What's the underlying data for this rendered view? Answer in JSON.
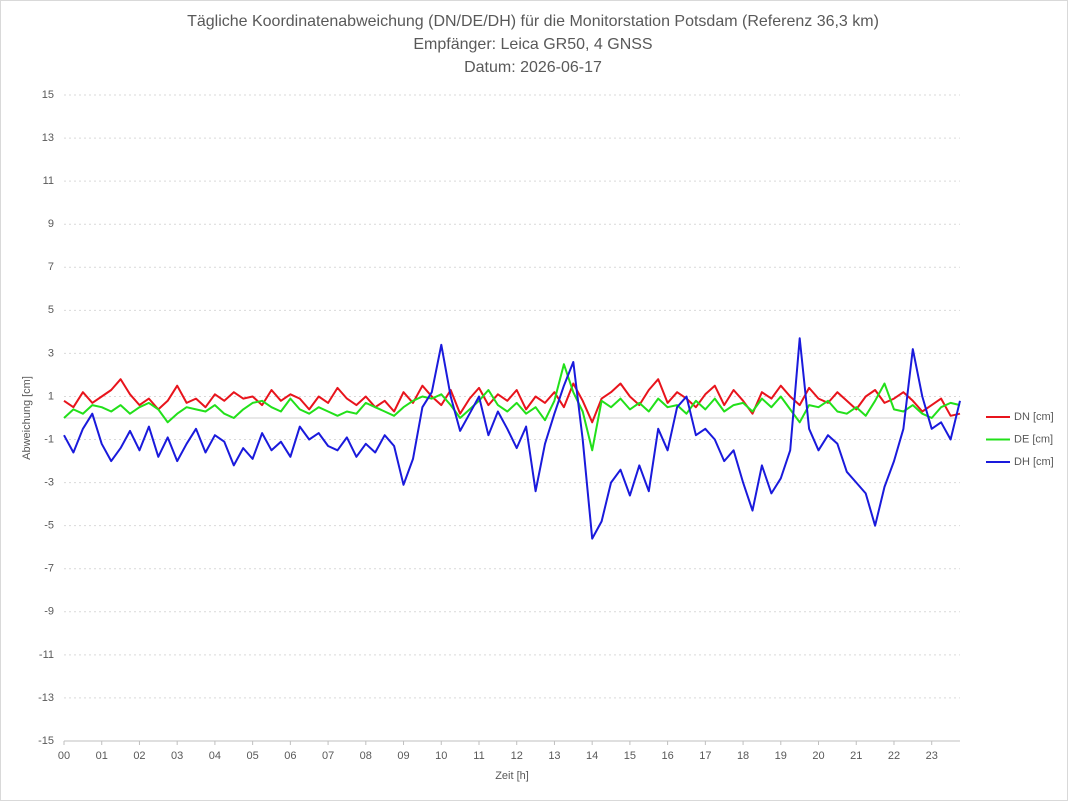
{
  "chart_data": {
    "type": "line",
    "title": "Tägliche Koordinatenabweichung (DN/DE/DH) für die Monitorstation Potsdam (Referenz 36,3 km)",
    "subtitle": "Empfänger: Leica GR50, 4 GNSS",
    "date": "Datum: 2026-06-17",
    "x_label": "Zeit [h]",
    "y_label": "Abweichung [cm]",
    "xlim": [
      0,
      23.75
    ],
    "xticks": [
      {
        "value": 0,
        "label": "00"
      },
      {
        "value": 1,
        "label": "01"
      },
      {
        "value": 2,
        "label": "02"
      },
      {
        "value": 3,
        "label": "03"
      },
      {
        "value": 4,
        "label": "04"
      },
      {
        "value": 5,
        "label": "05"
      },
      {
        "value": 6,
        "label": "06"
      },
      {
        "value": 7,
        "label": "07"
      },
      {
        "value": 8,
        "label": "08"
      },
      {
        "value": 9,
        "label": "09"
      },
      10,
      11,
      12,
      13,
      14,
      15,
      16,
      17,
      18,
      19,
      20,
      21,
      22,
      23
    ],
    "ylim": [
      -15,
      15
    ],
    "yticks": [
      -15,
      -13,
      -11,
      -9,
      -7,
      -5,
      -3,
      -1,
      1,
      3,
      5,
      7,
      9,
      11,
      13,
      15
    ],
    "grid": true,
    "legend": "right",
    "x": [
      0,
      0.25,
      0.5,
      0.75,
      1,
      1.25,
      1.5,
      1.75,
      2,
      2.25,
      2.5,
      2.75,
      3,
      3.25,
      3.5,
      3.75,
      4,
      4.25,
      4.5,
      4.75,
      5,
      5.25,
      5.5,
      5.75,
      6,
      6.25,
      6.5,
      6.75,
      7,
      7.25,
      7.5,
      7.75,
      8,
      8.25,
      8.5,
      8.75,
      9,
      9.25,
      9.5,
      9.75,
      10,
      10.25,
      10.5,
      10.75,
      11,
      11.25,
      11.5,
      11.75,
      12,
      12.25,
      12.5,
      12.75,
      13,
      13.25,
      13.5,
      13.75,
      14,
      14.25,
      14.5,
      14.75,
      15,
      15.25,
      15.5,
      15.75,
      16,
      16.25,
      16.5,
      16.75,
      17,
      17.25,
      17.5,
      17.75,
      18,
      18.25,
      18.5,
      18.75,
      19,
      19.25,
      19.5,
      19.75,
      20,
      20.25,
      20.5,
      20.75,
      21,
      21.25,
      21.5,
      21.75,
      22,
      22.25,
      22.5,
      22.75,
      23,
      23.25,
      23.5,
      23.75
    ],
    "series": [
      {
        "name": "DN [cm]",
        "color": "#e8141c",
        "values": [
          0.8,
          0.5,
          1.2,
          0.7,
          1.0,
          1.3,
          1.8,
          1.1,
          0.6,
          0.9,
          0.4,
          0.8,
          1.5,
          0.7,
          0.9,
          0.5,
          1.1,
          0.8,
          1.2,
          0.9,
          1.0,
          0.6,
          1.3,
          0.8,
          1.1,
          0.9,
          0.4,
          1.0,
          0.7,
          1.4,
          0.9,
          0.6,
          1.0,
          0.5,
          0.8,
          0.3,
          1.2,
          0.7,
          1.5,
          1.0,
          0.6,
          1.3,
          0.2,
          0.9,
          1.4,
          0.6,
          1.1,
          0.8,
          1.3,
          0.4,
          1.0,
          0.7,
          1.2,
          0.5,
          1.6,
          0.8,
          -0.2,
          0.9,
          1.2,
          1.6,
          1.0,
          0.6,
          1.3,
          1.8,
          0.7,
          1.2,
          0.9,
          0.5,
          1.1,
          1.5,
          0.6,
          1.3,
          0.8,
          0.2,
          1.2,
          0.9,
          1.5,
          1.0,
          0.6,
          1.4,
          0.9,
          0.7,
          1.2,
          0.8,
          0.4,
          1.0,
          1.3,
          0.7,
          0.9,
          1.2,
          0.8,
          0.3,
          0.6,
          0.9,
          0.1,
          0.2
        ]
      },
      {
        "name": "DE [cm]",
        "color": "#22e01a",
        "values": [
          0.0,
          0.4,
          0.2,
          0.6,
          0.5,
          0.3,
          0.6,
          0.2,
          0.5,
          0.7,
          0.4,
          -0.2,
          0.2,
          0.5,
          0.4,
          0.3,
          0.6,
          0.2,
          0.0,
          0.4,
          0.7,
          0.8,
          0.5,
          0.3,
          0.9,
          0.4,
          0.2,
          0.5,
          0.3,
          0.1,
          0.3,
          0.2,
          0.7,
          0.5,
          0.3,
          0.1,
          0.5,
          0.8,
          1.0,
          0.9,
          1.1,
          0.6,
          0.0,
          0.4,
          0.8,
          1.3,
          0.6,
          0.3,
          0.7,
          0.2,
          0.5,
          -0.1,
          0.8,
          2.5,
          1.2,
          0.3,
          -1.5,
          0.8,
          0.5,
          0.9,
          0.4,
          0.7,
          0.3,
          0.9,
          0.5,
          0.6,
          0.2,
          0.8,
          0.4,
          0.9,
          0.3,
          0.6,
          0.7,
          0.3,
          0.9,
          0.5,
          1.0,
          0.4,
          -0.2,
          0.6,
          0.5,
          0.8,
          0.3,
          0.2,
          0.5,
          0.1,
          0.8,
          1.6,
          0.4,
          0.3,
          0.6,
          0.2,
          0.0,
          0.5,
          0.7,
          0.6
        ]
      },
      {
        "name": "DH [cm]",
        "color": "#1a1adc",
        "values": [
          -0.8,
          -1.6,
          -0.5,
          0.2,
          -1.2,
          -2.0,
          -1.4,
          -0.6,
          -1.5,
          -0.4,
          -1.8,
          -0.9,
          -2.0,
          -1.2,
          -0.5,
          -1.6,
          -0.8,
          -1.1,
          -2.2,
          -1.4,
          -1.9,
          -0.7,
          -1.5,
          -1.1,
          -1.8,
          -0.4,
          -1.0,
          -0.7,
          -1.3,
          -1.5,
          -0.9,
          -1.8,
          -1.2,
          -1.6,
          -0.8,
          -1.3,
          -3.1,
          -1.9,
          0.5,
          1.2,
          3.4,
          1.0,
          -0.6,
          0.2,
          1.0,
          -0.8,
          0.3,
          -0.5,
          -1.4,
          -0.4,
          -3.4,
          -1.2,
          0.2,
          1.5,
          2.6,
          -1.0,
          -5.6,
          -4.8,
          -3.0,
          -2.4,
          -3.6,
          -2.2,
          -3.4,
          -0.5,
          -1.5,
          0.5,
          1.0,
          -0.8,
          -0.5,
          -1.0,
          -2.0,
          -1.5,
          -3.0,
          -4.3,
          -2.2,
          -3.5,
          -2.8,
          -1.5,
          3.7,
          -0.5,
          -1.5,
          -0.8,
          -1.2,
          -2.5,
          -3.0,
          -3.5,
          -5.0,
          -3.2,
          -2.0,
          -0.5,
          3.2,
          1.0,
          -0.5,
          -0.2,
          -1.0,
          0.8
        ]
      }
    ]
  }
}
